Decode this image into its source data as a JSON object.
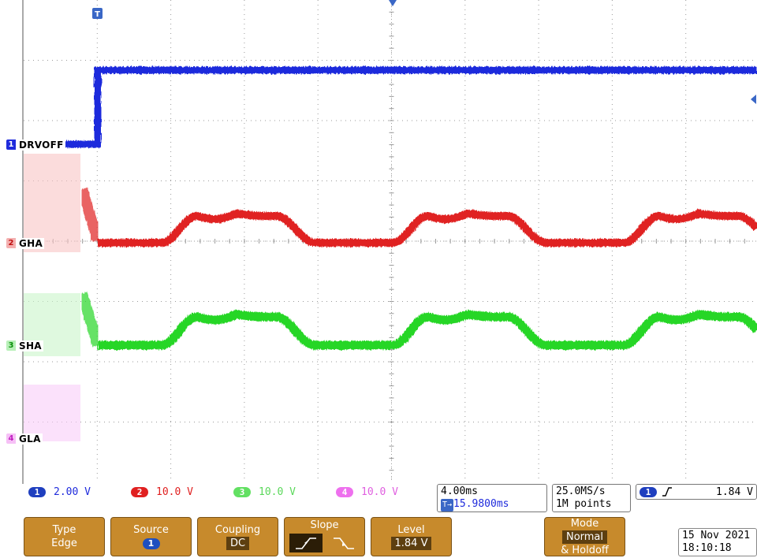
{
  "channels": [
    {
      "id": "1",
      "name": "DRVOFF",
      "color": "#1f2bdc",
      "scale": "2.00 V"
    },
    {
      "id": "2",
      "name": "GHA",
      "color": "#e02020",
      "scale": "10.0 V"
    },
    {
      "id": "3",
      "name": "SHA",
      "color": "#26d626",
      "scale": "10.0 V"
    },
    {
      "id": "4",
      "name": "GLA",
      "color": "#e03ce0",
      "scale": "10.0 V"
    }
  ],
  "trigger_marker": "T",
  "timebase": {
    "scale": "4.00ms",
    "position": "15.9800ms",
    "position_prefix": "T→"
  },
  "acquisition": {
    "rate": "25.0MS/s",
    "points": "1M points"
  },
  "trigger_readout": {
    "channel": "1",
    "level": "1.84 V"
  },
  "menu": {
    "type_label": "Type",
    "type_value": "Edge",
    "source_label": "Source",
    "source_value": "1",
    "coupling_label": "Coupling",
    "coupling_value": "DC",
    "slope_label": "Slope",
    "level_label": "Level",
    "level_value": "1.84 V",
    "mode_label": "Mode",
    "mode_value": "Normal",
    "mode_extra": "& Holdoff"
  },
  "date": "15 Nov 2021",
  "time": "18:10:18",
  "colors": {
    "grid": "#9a9a9a",
    "menu_bg": "#c78a2c",
    "menu_dark": "#5d3f10"
  }
}
